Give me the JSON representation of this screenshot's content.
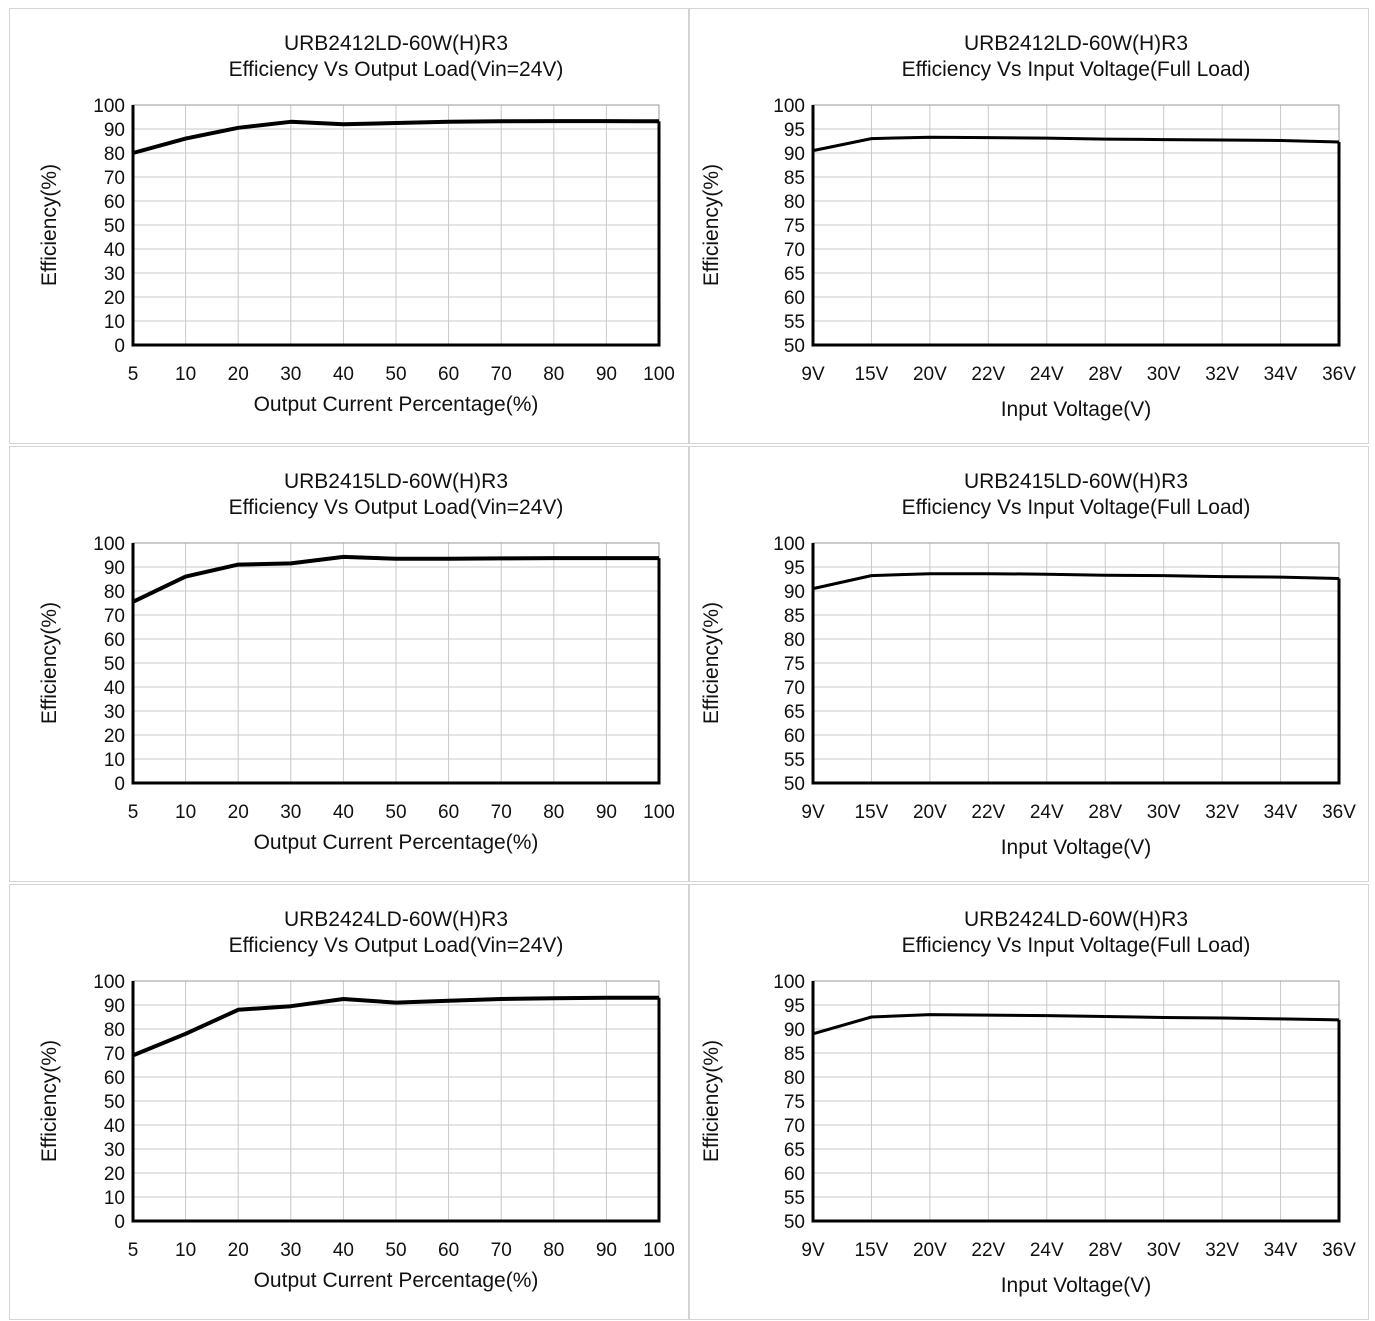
{
  "chart_data": [
    {
      "type": "line",
      "title": "URB2412LD-60W(H)R3",
      "subtitle": "Efficiency Vs Output Load(Vin=24V)",
      "xlabel": "Output Current Percentage(%)",
      "ylabel": "Efficiency(%)",
      "categories": [
        "5",
        "10",
        "20",
        "30",
        "40",
        "50",
        "60",
        "70",
        "80",
        "90",
        "100"
      ],
      "y_ticks": [
        "0",
        "10",
        "20",
        "30",
        "40",
        "50",
        "60",
        "70",
        "80",
        "90",
        "100"
      ],
      "ylim": [
        0,
        100
      ],
      "grid": true,
      "series": [
        {
          "values": [
            80,
            86,
            90.5,
            93,
            92,
            92.5,
            93,
            93.2,
            93.3,
            93.3,
            93.2
          ]
        }
      ]
    },
    {
      "type": "line",
      "title": "URB2412LD-60W(H)R3",
      "subtitle": "Efficiency Vs Input Voltage(Full Load)",
      "xlabel": "Input Voltage(V)",
      "ylabel": "Efficiency(%)",
      "categories": [
        "9V",
        "15V",
        "20V",
        "22V",
        "24V",
        "28V",
        "30V",
        "32V",
        "34V",
        "36V"
      ],
      "y_ticks": [
        "50",
        "55",
        "60",
        "65",
        "70",
        "75",
        "80",
        "85",
        "90",
        "95",
        "100"
      ],
      "ylim": [
        50,
        100
      ],
      "grid": true,
      "series": [
        {
          "values": [
            90.5,
            93,
            93.3,
            93.2,
            93.1,
            92.9,
            92.8,
            92.7,
            92.6,
            92.3
          ]
        }
      ]
    },
    {
      "type": "line",
      "title": "URB2415LD-60W(H)R3",
      "subtitle": "Efficiency Vs Output Load(Vin=24V)",
      "xlabel": "Output Current Percentage(%)",
      "ylabel": "Efficiency(%)",
      "categories": [
        "5",
        "10",
        "20",
        "30",
        "40",
        "50",
        "60",
        "70",
        "80",
        "90",
        "100"
      ],
      "y_ticks": [
        "0",
        "10",
        "20",
        "30",
        "40",
        "50",
        "60",
        "70",
        "80",
        "90",
        "100"
      ],
      "ylim": [
        0,
        100
      ],
      "grid": true,
      "series": [
        {
          "values": [
            75.5,
            86,
            91,
            91.5,
            94.2,
            93.4,
            93.4,
            93.6,
            93.7,
            93.7,
            93.7
          ]
        }
      ]
    },
    {
      "type": "line",
      "title": "URB2415LD-60W(H)R3",
      "subtitle": "Efficiency Vs Input Voltage(Full Load)",
      "xlabel": "Input Voltage(V)",
      "ylabel": "Efficiency(%)",
      "categories": [
        "9V",
        "15V",
        "20V",
        "22V",
        "24V",
        "28V",
        "30V",
        "32V",
        "34V",
        "36V"
      ],
      "y_ticks": [
        "50",
        "55",
        "60",
        "65",
        "70",
        "75",
        "80",
        "85",
        "90",
        "95",
        "100"
      ],
      "ylim": [
        50,
        100
      ],
      "grid": true,
      "series": [
        {
          "values": [
            90.5,
            93.2,
            93.6,
            93.6,
            93.5,
            93.3,
            93.2,
            93,
            92.9,
            92.6
          ]
        }
      ]
    },
    {
      "type": "line",
      "title": "URB2424LD-60W(H)R3",
      "subtitle": "Efficiency Vs Output Load(Vin=24V)",
      "xlabel": "Output Current Percentage(%)",
      "ylabel": "Efficiency(%)",
      "categories": [
        "5",
        "10",
        "20",
        "30",
        "40",
        "50",
        "60",
        "70",
        "80",
        "90",
        "100"
      ],
      "y_ticks": [
        "0",
        "10",
        "20",
        "30",
        "40",
        "50",
        "60",
        "70",
        "80",
        "90",
        "100"
      ],
      "ylim": [
        0,
        100
      ],
      "grid": true,
      "series": [
        {
          "values": [
            69,
            78,
            88,
            89.5,
            92.5,
            91,
            91.8,
            92.5,
            92.8,
            93,
            93
          ]
        }
      ]
    },
    {
      "type": "line",
      "title": "URB2424LD-60W(H)R3",
      "subtitle": "Efficiency Vs Input Voltage(Full Load)",
      "xlabel": "Input Voltage(V)",
      "ylabel": "Efficiency(%)",
      "categories": [
        "9V",
        "15V",
        "20V",
        "22V",
        "24V",
        "28V",
        "30V",
        "32V",
        "34V",
        "36V"
      ],
      "y_ticks": [
        "50",
        "55",
        "60",
        "65",
        "70",
        "75",
        "80",
        "85",
        "90",
        "95",
        "100"
      ],
      "ylim": [
        50,
        100
      ],
      "grid": true,
      "series": [
        {
          "values": [
            89,
            92.5,
            93,
            92.9,
            92.8,
            92.6,
            92.4,
            92.3,
            92.1,
            91.9
          ]
        }
      ]
    }
  ]
}
